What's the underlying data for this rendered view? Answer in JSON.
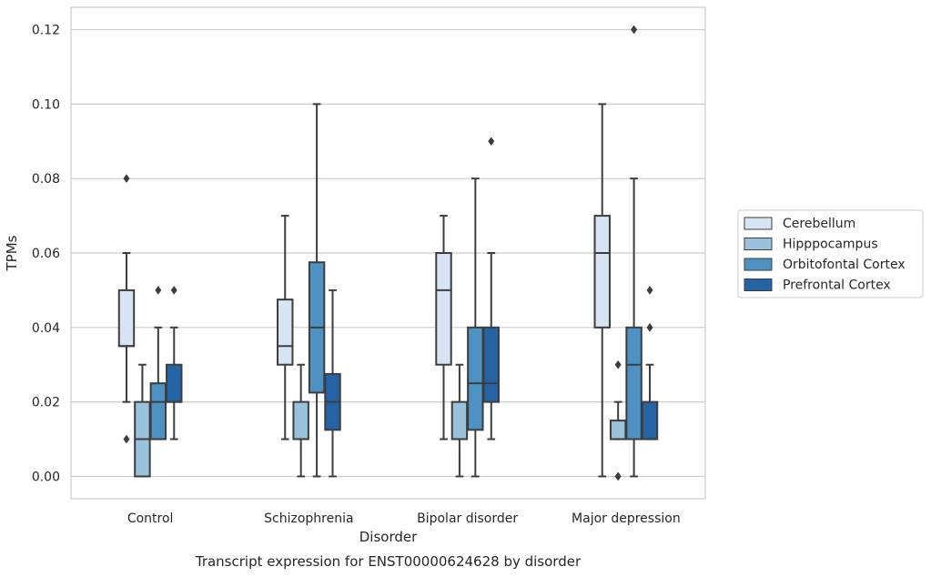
{
  "caption": "Transcript expression for ENST00000624628 by disorder",
  "chart_data": {
    "type": "box",
    "xlabel": "Disorder",
    "ylabel": "TPMs",
    "ylim": [
      -0.006,
      0.126
    ],
    "yticks": [
      0.0,
      0.02,
      0.04,
      0.06,
      0.08,
      0.1,
      0.12
    ],
    "ytick_labels": [
      "0.00",
      "0.02",
      "0.04",
      "0.06",
      "0.08",
      "0.10",
      "0.12"
    ],
    "grid": "horizontal",
    "legend_position": "right",
    "categories": [
      "Control",
      "Schizophrenia",
      "Bipolar disorder",
      "Major depression"
    ],
    "series": [
      {
        "name": "Cerebellum",
        "color": "#d6e4f3",
        "boxes": [
          {
            "whisker_low": 0.02,
            "q1": 0.035,
            "median": 0.035,
            "q3": 0.05,
            "whisker_high": 0.06,
            "outliers": [
              0.08,
              0.01
            ]
          },
          {
            "whisker_low": 0.01,
            "q1": 0.03,
            "median": 0.035,
            "q3": 0.0475,
            "whisker_high": 0.07,
            "outliers": []
          },
          {
            "whisker_low": 0.01,
            "q1": 0.03,
            "median": 0.05,
            "q3": 0.06,
            "whisker_high": 0.07,
            "outliers": []
          },
          {
            "whisker_low": 0.0,
            "q1": 0.04,
            "median": 0.06,
            "q3": 0.07,
            "whisker_high": 0.1,
            "outliers": []
          }
        ]
      },
      {
        "name": "Hipppocampus",
        "color": "#9ac2dc",
        "boxes": [
          {
            "whisker_low": 0.0,
            "q1": 0.0,
            "median": 0.01,
            "q3": 0.02,
            "whisker_high": 0.03,
            "outliers": []
          },
          {
            "whisker_low": 0.0,
            "q1": 0.01,
            "median": 0.01,
            "q3": 0.02,
            "whisker_high": 0.03,
            "outliers": []
          },
          {
            "whisker_low": 0.0,
            "q1": 0.01,
            "median": 0.01,
            "q3": 0.02,
            "whisker_high": 0.03,
            "outliers": []
          },
          {
            "whisker_low": 0.01,
            "q1": 0.01,
            "median": 0.01,
            "q3": 0.015,
            "whisker_high": 0.02,
            "outliers": [
              0.03,
              0.0,
              0.0
            ]
          }
        ]
      },
      {
        "name": "Orbitofontal Cortex",
        "color": "#4d92c2",
        "boxes": [
          {
            "whisker_low": 0.01,
            "q1": 0.01,
            "median": 0.02,
            "q3": 0.025,
            "whisker_high": 0.04,
            "outliers": [
              0.05
            ]
          },
          {
            "whisker_low": 0.0,
            "q1": 0.0225,
            "median": 0.04,
            "q3": 0.0575,
            "whisker_high": 0.1,
            "outliers": []
          },
          {
            "whisker_low": 0.0,
            "q1": 0.0125,
            "median": 0.025,
            "q3": 0.04,
            "whisker_high": 0.08,
            "outliers": []
          },
          {
            "whisker_low": 0.0,
            "q1": 0.01,
            "median": 0.03,
            "q3": 0.04,
            "whisker_high": 0.08,
            "outliers": [
              0.12
            ]
          }
        ]
      },
      {
        "name": "Prefrontal Cortex",
        "color": "#2464a5",
        "boxes": [
          {
            "whisker_low": 0.01,
            "q1": 0.02,
            "median": 0.02,
            "q3": 0.03,
            "whisker_high": 0.04,
            "outliers": [
              0.05
            ]
          },
          {
            "whisker_low": 0.0,
            "q1": 0.0125,
            "median": 0.02,
            "q3": 0.0275,
            "whisker_high": 0.05,
            "outliers": []
          },
          {
            "whisker_low": 0.01,
            "q1": 0.02,
            "median": 0.025,
            "q3": 0.04,
            "whisker_high": 0.06,
            "outliers": [
              0.09
            ]
          },
          {
            "whisker_low": 0.01,
            "q1": 0.01,
            "median": 0.01,
            "q3": 0.02,
            "whisker_high": 0.03,
            "outliers": [
              0.05,
              0.04
            ]
          }
        ]
      }
    ]
  }
}
